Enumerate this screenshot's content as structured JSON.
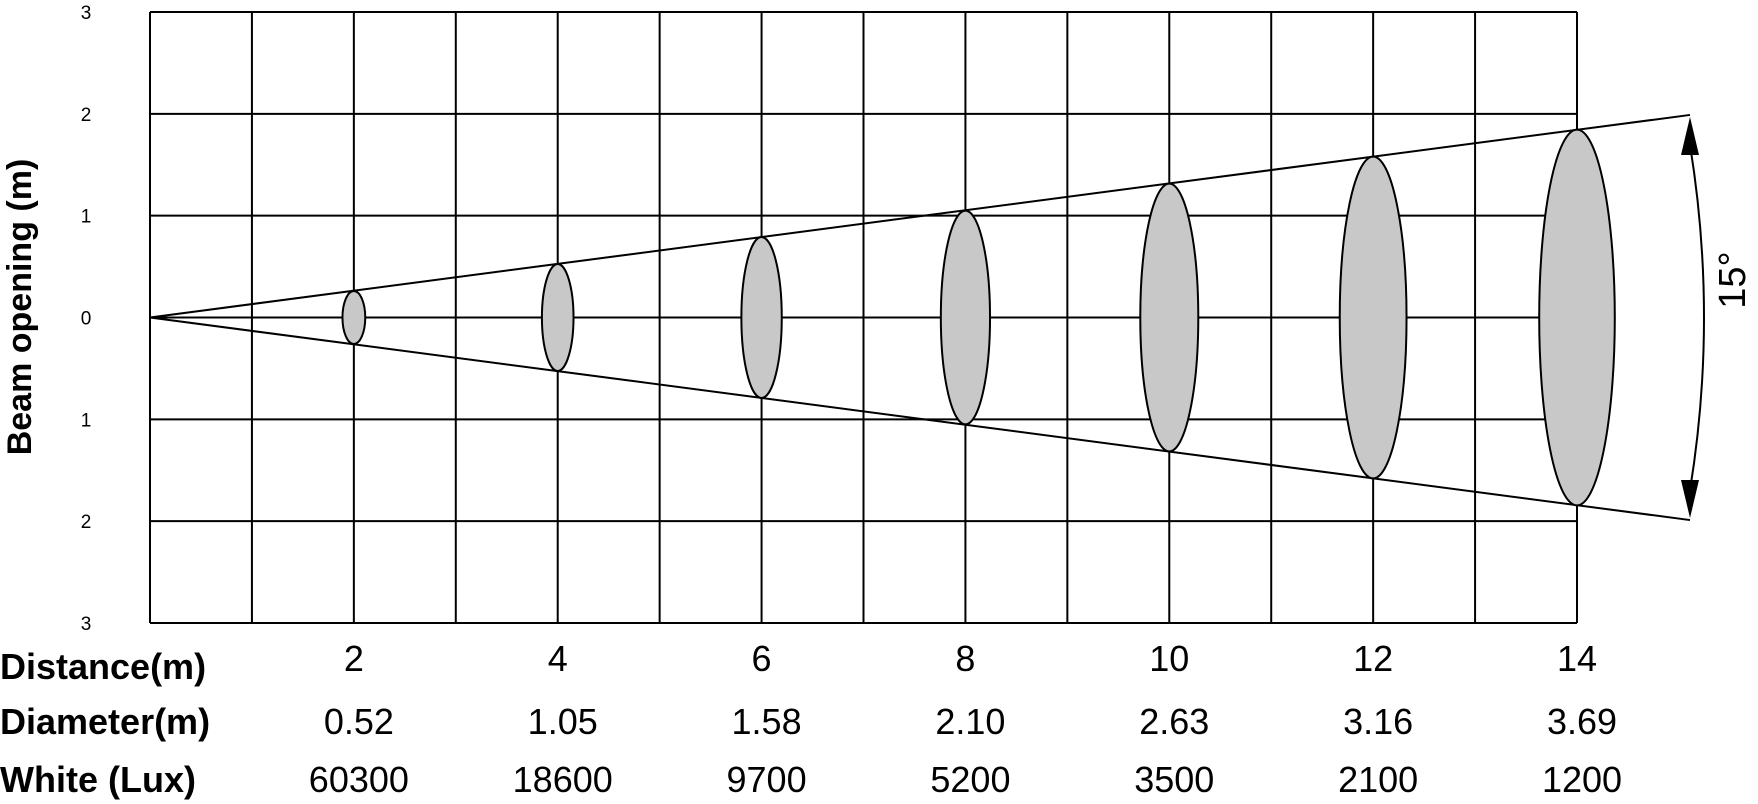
{
  "chart_data": {
    "type": "beam-diagram",
    "ylabel": "Beam opening (m)",
    "y_ticks": [
      "3",
      "2",
      "1",
      "0",
      "1",
      "2",
      "3"
    ],
    "beam_angle_label": "15°",
    "beam_angle_deg": 15,
    "distance_max_m": 14,
    "rows": [
      {
        "label": "Distance(m)",
        "values": [
          "2",
          "4",
          "6",
          "8",
          "10",
          "12",
          "14"
        ]
      },
      {
        "label": "Diameter(m)",
        "values": [
          "0.52",
          "1.05",
          "1.58",
          "2.10",
          "2.63",
          "3.16",
          "3.69"
        ]
      },
      {
        "label": "White  (Lux)",
        "values": [
          "60300",
          "18600",
          "9700",
          "5200",
          "3500",
          "2100",
          "1200"
        ]
      }
    ],
    "spots": [
      {
        "distance": 2,
        "diameter": 0.52
      },
      {
        "distance": 4,
        "diameter": 1.05
      },
      {
        "distance": 6,
        "diameter": 1.58
      },
      {
        "distance": 8,
        "diameter": 2.1
      },
      {
        "distance": 10,
        "diameter": 2.63
      },
      {
        "distance": 12,
        "diameter": 3.16
      },
      {
        "distance": 14,
        "diameter": 3.69
      }
    ]
  }
}
